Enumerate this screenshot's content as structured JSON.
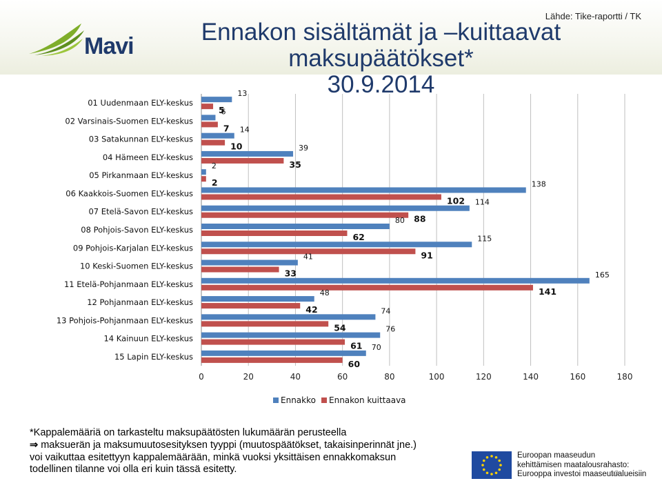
{
  "header": {
    "source": "Lähde: Tike-raportti / TK",
    "title_line1": "Ennakon sisältämät ja –kuittaavat maksupäätökset*",
    "title_line2": "30.9.2014",
    "logo_text": "Mavi"
  },
  "chart_data": {
    "type": "bar",
    "orientation": "horizontal",
    "categories": [
      "01 Uudenmaan ELY-keskus",
      "02 Varsinais-Suomen ELY-keskus",
      "03 Satakunnan ELY-keskus",
      "04 Hämeen ELY-keskus",
      "05 Pirkanmaan ELY-keskus",
      "06 Kaakkois-Suomen ELY-keskus",
      "07 Etelä-Savon ELY-keskus",
      "08 Pohjois-Savon ELY-keskus",
      "09 Pohjois-Karjalan ELY-keskus",
      "10 Keski-Suomen ELY-keskus",
      "11 Etelä-Pohjanmaan ELY-keskus",
      "12 Pohjanmaan ELY-keskus",
      "13 Pohjois-Pohjanmaan ELY-keskus",
      "14 Kainuun ELY-keskus",
      "15 Lapin ELY-keskus"
    ],
    "series": [
      {
        "name": "Ennakko",
        "color": "#4f81bd",
        "values": [
          13,
          6,
          14,
          39,
          2,
          138,
          114,
          80,
          115,
          41,
          165,
          48,
          74,
          76,
          70
        ]
      },
      {
        "name": "Ennakon kuittaava",
        "color": "#c0504d",
        "values": [
          5,
          7,
          10,
          35,
          2,
          102,
          88,
          62,
          91,
          33,
          141,
          42,
          54,
          61,
          60
        ]
      }
    ],
    "xlim": [
      0,
      180
    ],
    "xticks": [
      0,
      20,
      40,
      60,
      80,
      100,
      120,
      140,
      160,
      180
    ],
    "grid": true,
    "legend": "bottom"
  },
  "note": {
    "line1": "*Kappalemääriä on tarkasteltu maksupäätösten lukumäärän perusteella",
    "arrow": "⇒",
    "line2": "maksuerän ja maksumuutosesityksen tyyppi (muutospäätökset, takaisinperinnät jne.)",
    "line3": "voi vaikuttaa esitettyyn kappalemäärään, minkä vuoksi yksittäisen ennakkomaksun",
    "line4": "todellinen tilanne voi olla eri kuin tässä esitetty."
  },
  "eu": {
    "line1": "Euroopan maaseudun",
    "line2": "kehittämisen maatalousrahasto:",
    "line3": "Eurooppa investoi maaseutualueisiin"
  },
  "page_number": "10"
}
